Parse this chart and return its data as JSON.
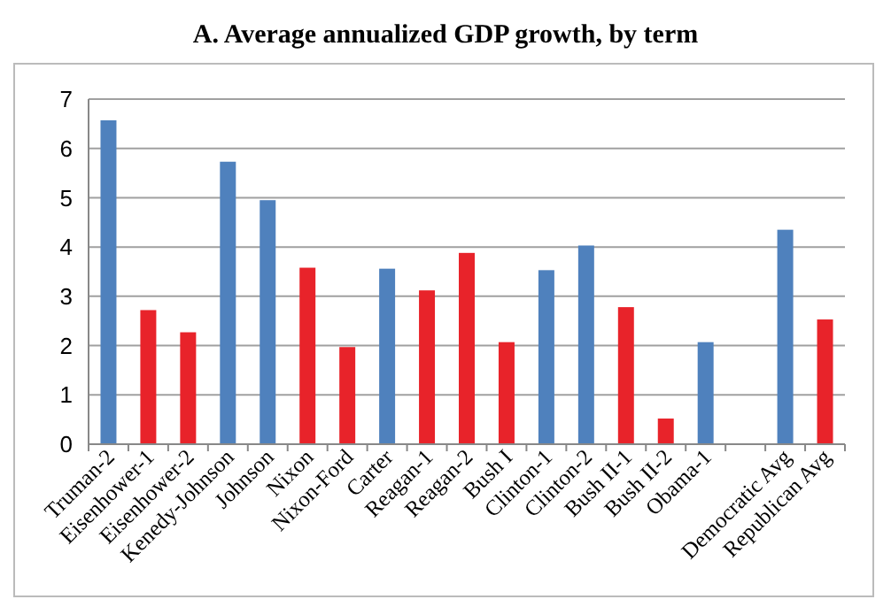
{
  "chart_data": {
    "type": "bar",
    "title": "A. Average annualized GDP growth, by term",
    "categories": [
      "Truman-2",
      "Eisenhower-1",
      "Eisenhower-2",
      "Kenedy-Johnson",
      "Johnson",
      "Nixon",
      "Nixon-Ford",
      "Carter",
      "Reagan-1",
      "Reagan-2",
      "Bush I",
      "Clinton-1",
      "Clinton-2",
      "Bush II-1",
      "Bush II-2",
      "Obama-1",
      null,
      "Democratic Avg",
      "Republican Avg"
    ],
    "values": [
      6.57,
      2.72,
      2.27,
      5.73,
      4.95,
      3.58,
      1.97,
      3.56,
      3.12,
      3.88,
      2.07,
      3.53,
      4.03,
      2.78,
      0.52,
      2.07,
      null,
      4.35,
      2.53
    ],
    "colors": [
      "#4f81bd",
      "#e8232a",
      "#e8232a",
      "#4f81bd",
      "#4f81bd",
      "#e8232a",
      "#e8232a",
      "#4f81bd",
      "#e8232a",
      "#e8232a",
      "#e8232a",
      "#4f81bd",
      "#4f81bd",
      "#e8232a",
      "#e8232a",
      "#4f81bd",
      null,
      "#4f81bd",
      "#e8232a"
    ],
    "ylim": [
      0,
      7
    ],
    "yticks": [
      0,
      1,
      2,
      3,
      4,
      5,
      6,
      7
    ],
    "grid": "y"
  }
}
